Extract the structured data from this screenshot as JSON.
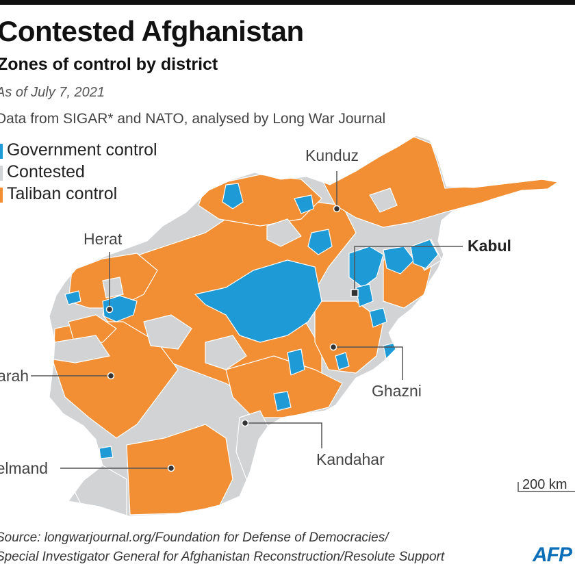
{
  "header": {
    "title": "Contested Afghanistan",
    "subtitle": "Zones of control by district",
    "date": "As of July 7, 2021",
    "data_source": "Data from SIGAR* and NATO, analysed by Long War Journal"
  },
  "legend": [
    {
      "label": "Government control",
      "color": "#1e9bd7"
    },
    {
      "label": "Contested",
      "color": "#d2d3d5"
    },
    {
      "label": "Taliban control",
      "color": "#f28f34"
    }
  ],
  "colors": {
    "government": "#1e9bd7",
    "contested": "#d2d3d5",
    "taliban": "#f28f34",
    "border": "#ffffff",
    "leader": "#555555"
  },
  "cities": {
    "kunduz": "Kunduz",
    "kabul": "Kabul",
    "herat": "Herat",
    "farah": "Farah",
    "ghazni": "Ghazni",
    "kandahar": "Kandahar",
    "helmand": "Helmand"
  },
  "scale": {
    "label": "200 km"
  },
  "footer": {
    "source_line1": "Source: longwarjournal.org/Foundation for Defense of Democracies/",
    "source_line2": "Special Investigator General for Afghanistan Reconstruction/Resolute Support",
    "logo": "AFP"
  }
}
